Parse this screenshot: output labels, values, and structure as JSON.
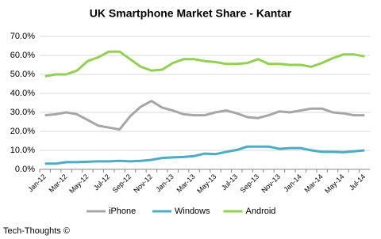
{
  "chart_data": {
    "type": "line",
    "title": "UK Smartphone Market Share - Kantar",
    "categories": [
      "Jan-12",
      null,
      "Mar-12",
      null,
      "May-12",
      null,
      "Jul-12",
      null,
      "Sep-12",
      null,
      "Nov-12",
      null,
      "Jan-13",
      null,
      "Mar-13",
      null,
      "May-13",
      null,
      "Jul-13",
      null,
      "Sep-13",
      null,
      "Nov-13",
      null,
      "Jan-14",
      null,
      "Mar-14",
      null,
      "May-14",
      null,
      "Jul-14"
    ],
    "series": [
      {
        "name": "iPhone",
        "color": "#a6a6a6",
        "values": [
          28.5,
          29,
          30,
          29,
          26,
          23,
          22,
          21,
          28,
          33,
          36,
          32.5,
          31,
          29,
          28.5,
          28.5,
          30,
          31,
          29.5,
          27.5,
          27,
          28.5,
          30.5,
          30,
          31,
          32,
          32,
          30,
          29.5,
          28.5,
          28.5
        ]
      },
      {
        "name": "Windows",
        "color": "#4bacc6",
        "values": [
          3,
          3,
          3.8,
          3.8,
          4,
          4.2,
          4.2,
          4.5,
          4.2,
          4.5,
          5,
          6,
          6.3,
          6.5,
          7,
          8.3,
          8,
          9.2,
          10.2,
          12,
          12,
          12,
          10.8,
          11.2,
          11.2,
          10,
          9.2,
          9.2,
          9,
          9.5,
          10
        ]
      },
      {
        "name": "Android",
        "color": "#92d050",
        "values": [
          49,
          50,
          50,
          52,
          57,
          59,
          62,
          62,
          58,
          54,
          52,
          52.5,
          56,
          58,
          58,
          57,
          56.5,
          55.5,
          55.5,
          56,
          58,
          55.5,
          55.5,
          55,
          55,
          54,
          56,
          58.5,
          60.5,
          60.5,
          59.5
        ]
      }
    ],
    "ylim": [
      0,
      70
    ],
    "yticks": [
      {
        "value": 0,
        "label": "0.0%"
      },
      {
        "value": 10,
        "label": "10.0%"
      },
      {
        "value": 20,
        "label": "20.0%"
      },
      {
        "value": 30,
        "label": "30.0%"
      },
      {
        "value": 40,
        "label": "40.0%"
      },
      {
        "value": 50,
        "label": "50.0%"
      },
      {
        "value": 60,
        "label": "60.0%"
      },
      {
        "value": 70,
        "label": "70.0%"
      }
    ],
    "grid": true,
    "legend": "bottom",
    "footer": "Tech-Thoughts ©"
  }
}
